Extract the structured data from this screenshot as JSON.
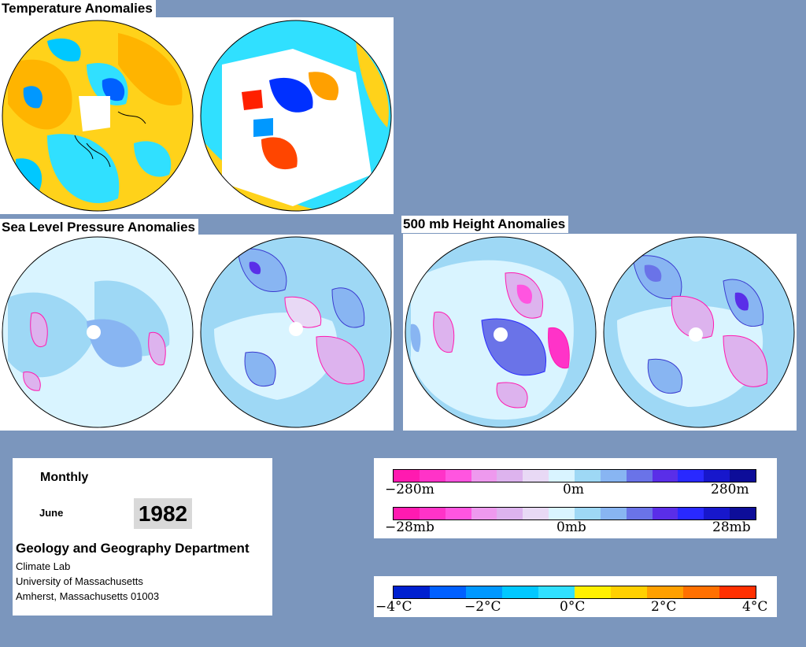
{
  "sections": {
    "temperature": "Temperature Anomalies",
    "slp": "Sea Level Pressure Anomalies",
    "height500": "500 mb Height Anomalies"
  },
  "info": {
    "period": "Monthly",
    "month": "June",
    "year": "1982",
    "dept": "Geology and Geography Department",
    "line1": "Climate Lab",
    "line2": "University of Massachusetts",
    "line3": "Amherst, Massachusetts 01003"
  },
  "legend": {
    "height_ticks": [
      "−280m",
      "0m",
      "280m"
    ],
    "pressure_ticks": [
      "−28mb",
      "0mb",
      "28mb"
    ],
    "temp_ticks": [
      "−4°C",
      "−2°C",
      "0°C",
      "2°C",
      "4°C"
    ]
  },
  "colors": {
    "background": "#7b96bd",
    "anomaly_scale": [
      "#ff1ab0",
      "#ff33c8",
      "#ff55e0",
      "#ee99ee",
      "#ddb3ee",
      "#e8d9f5",
      "#d9f4ff",
      "#9ed8f5",
      "#88b5f2",
      "#6a73e8",
      "#5a2ee8",
      "#2929ff",
      "#1717cc",
      "#0d0d99"
    ],
    "temp_scale": [
      "#0020d0",
      "#0060ff",
      "#0098ff",
      "#00c8ff",
      "#30e0ff",
      "#fff000",
      "#ffd000",
      "#ffa000",
      "#ff7000",
      "#ff3000"
    ]
  }
}
